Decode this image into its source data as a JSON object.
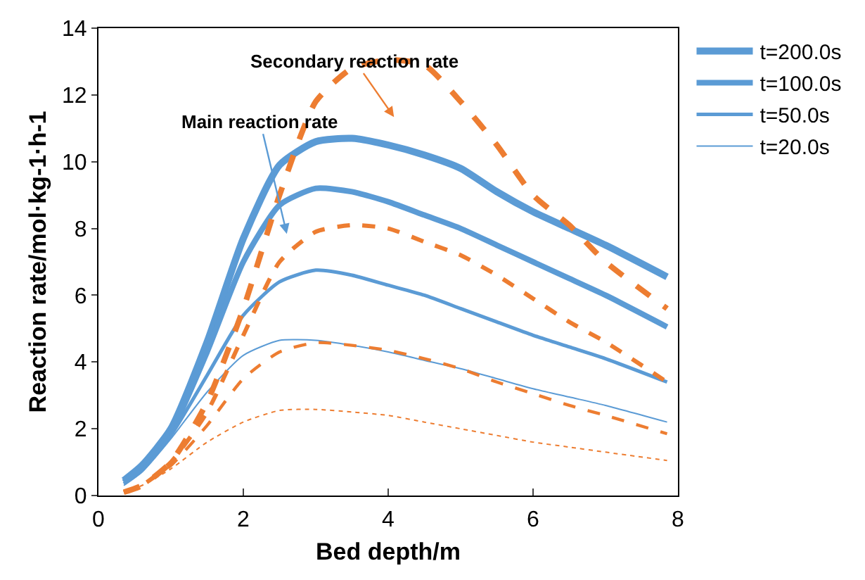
{
  "chart_data": {
    "type": "line",
    "xlabel": "Bed depth/m",
    "ylabel": "Reaction rate/mol·kg-1·h-1",
    "x": [
      0.35,
      0.6,
      1,
      1.5,
      2,
      2.5,
      3,
      3.5,
      4,
      4.5,
      5,
      5.5,
      6,
      6.5,
      7,
      7.85
    ],
    "series": [
      {
        "name": "t=200.0s",
        "color": "#5b9bd5",
        "line_style": "solid",
        "values": [
          0.45,
          0.9,
          2.0,
          4.6,
          7.7,
          9.9,
          10.6,
          10.7,
          10.5,
          10.2,
          9.8,
          9.1,
          8.5,
          8.0,
          7.5,
          6.55
        ]
      },
      {
        "name": "t=100.0s",
        "color": "#5b9bd5",
        "line_style": "solid",
        "values": [
          0.4,
          0.85,
          1.9,
          4.3,
          7.0,
          8.7,
          9.2,
          9.1,
          8.8,
          8.4,
          8.0,
          7.5,
          7.0,
          6.5,
          6.0,
          5.05
        ]
      },
      {
        "name": "t=50.0s",
        "color": "#5b9bd5",
        "line_style": "solid",
        "values": [
          0.35,
          0.75,
          1.8,
          3.6,
          5.4,
          6.4,
          6.75,
          6.6,
          6.3,
          6.0,
          5.6,
          5.2,
          4.8,
          4.45,
          4.1,
          3.4
        ]
      },
      {
        "name": "t=20.0s",
        "color": "#5b9bd5",
        "line_style": "solid",
        "values": [
          0.3,
          0.7,
          1.7,
          3.1,
          4.2,
          4.65,
          4.65,
          4.5,
          4.3,
          4.05,
          3.8,
          3.5,
          3.2,
          2.95,
          2.7,
          2.2
        ]
      },
      {
        "color": "#ed7d31",
        "line_style": "dashed",
        "values": [
          0.1,
          0.3,
          1.0,
          2.8,
          5.6,
          9.0,
          11.8,
          12.8,
          13.05,
          12.9,
          11.8,
          10.5,
          9.0,
          8.1,
          7.0,
          5.6
        ]
      },
      {
        "color": "#ed7d31",
        "line_style": "dashed",
        "values": [
          0.1,
          0.3,
          1.0,
          2.5,
          4.8,
          7.0,
          7.9,
          8.1,
          8.0,
          7.6,
          7.2,
          6.6,
          5.9,
          5.2,
          4.6,
          3.4
        ]
      },
      {
        "color": "#ed7d31",
        "line_style": "dashed",
        "values": [
          0.1,
          0.3,
          0.9,
          2.1,
          3.5,
          4.3,
          4.58,
          4.5,
          4.35,
          4.1,
          3.8,
          3.4,
          3.05,
          2.7,
          2.4,
          1.85
        ]
      },
      {
        "color": "#ed7d31",
        "line_style": "dotted",
        "values": [
          0.1,
          0.3,
          0.8,
          1.6,
          2.2,
          2.55,
          2.58,
          2.5,
          2.4,
          2.2,
          2.0,
          1.8,
          1.6,
          1.45,
          1.3,
          1.05
        ]
      }
    ],
    "annotations": [
      "Secondary reaction rate",
      "Main reaction rate"
    ],
    "xlim": [
      0,
      8
    ],
    "xticks": [
      0,
      2,
      4,
      6,
      8
    ],
    "ylim": [
      0,
      14
    ],
    "yticks": [
      0,
      2,
      4,
      6,
      8,
      10,
      12,
      14
    ],
    "grid": false,
    "legend": "top right",
    "marker": "none"
  }
}
